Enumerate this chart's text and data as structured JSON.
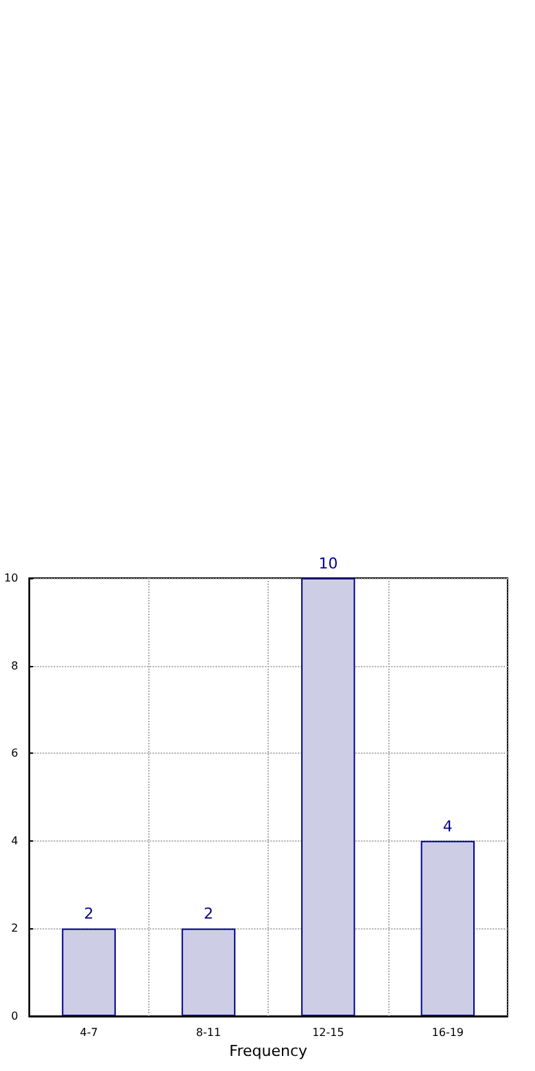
{
  "chart_data": {
    "type": "bar",
    "xlabel": "Frequency",
    "categories": [
      "4-7",
      "8-11",
      "12-15",
      "16-19"
    ],
    "values": [
      2,
      2,
      10,
      4
    ],
    "color": "#cdcde6",
    "ylim": [
      0,
      10
    ],
    "yticks": [
      0,
      2,
      4,
      6,
      8,
      10
    ],
    "grid": true,
    "data_labels": true
  }
}
